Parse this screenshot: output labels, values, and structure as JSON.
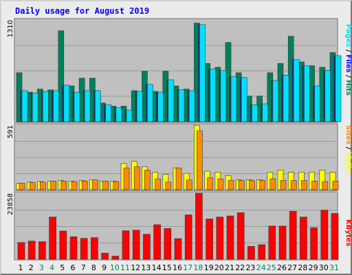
{
  "chart_data": {
    "type": "bar",
    "title": "Daily usage for August 2019",
    "days": [
      "1",
      "2",
      "3",
      "4",
      "5",
      "6",
      "7",
      "8",
      "9",
      "10",
      "11",
      "12",
      "13",
      "14",
      "15",
      "16",
      "17",
      "18",
      "19",
      "20",
      "21",
      "22",
      "23",
      "24",
      "25",
      "26",
      "27",
      "28",
      "29",
      "30",
      "31"
    ],
    "weekend_days": [
      "3",
      "4",
      "10",
      "11",
      "17",
      "18",
      "24",
      "25",
      "31"
    ],
    "grid": true,
    "panels": [
      {
        "name": "hits_files_pages",
        "max_label": "1310",
        "ylim": [
          0,
          1310
        ],
        "series": [
          {
            "name": "Hits",
            "color": "#00805c",
            "values": [
              630,
              380,
              420,
              410,
              1170,
              460,
              560,
              560,
              240,
              200,
              200,
              400,
              650,
              390,
              650,
              460,
              420,
              1270,
              750,
              700,
              1020,
              630,
              330,
              330,
              630,
              750,
              1100,
              770,
              720,
              700,
              890
            ]
          },
          {
            "name": "Files",
            "color": "#0000ff",
            "values": [
              400,
              370,
              390,
              400,
              470,
              380,
              400,
              400,
              220,
              180,
              150,
              390,
              480,
              380,
              540,
              410,
              400,
              1250,
              680,
              660,
              580,
              570,
              220,
              230,
              530,
              600,
              800,
              720,
              460,
              660,
              850
            ]
          },
          {
            "name": "Pages",
            "color": "#00e0ff",
            "values": [
              400,
              370,
              390,
              400,
              470,
              380,
              400,
              400,
              220,
              180,
              150,
              390,
              480,
              380,
              540,
              410,
              400,
              1250,
              680,
              660,
              580,
              570,
              220,
              230,
              530,
              600,
              800,
              720,
              460,
              660,
              850
            ]
          }
        ]
      },
      {
        "name": "visits_sites",
        "max_label": "591",
        "ylim": [
          0,
          591
        ],
        "series": [
          {
            "name": "Visits",
            "color": "#ffff00",
            "values": [
              60,
              70,
              75,
              80,
              85,
              80,
              85,
              90,
              80,
              80,
              240,
              260,
              210,
              160,
              140,
              200,
              150,
              590,
              170,
              160,
              130,
              90,
              90,
              90,
              160,
              180,
              160,
              160,
              160,
              180,
              160
            ]
          },
          {
            "name": "Sites",
            "color": "#ff8c00",
            "values": [
              60,
              65,
              70,
              80,
              80,
              75,
              80,
              90,
              80,
              75,
              200,
              210,
              180,
              100,
              70,
              200,
              90,
              540,
              110,
              100,
              85,
              85,
              85,
              85,
              100,
              85,
              85,
              85,
              80,
              75,
              80
            ]
          }
        ]
      },
      {
        "name": "kbytes",
        "max_label": "23858",
        "ylim": [
          0,
          23858
        ],
        "series": [
          {
            "name": "KBytes",
            "color": "#ff0000",
            "values": [
              6100,
              6600,
              6400,
              15400,
              10300,
              8200,
              7600,
              7900,
              2200,
              1100,
              10400,
              10600,
              9100,
              12600,
              11200,
              7500,
              16200,
              24100,
              14700,
              15400,
              15800,
              17000,
              4700,
              5300,
              12100,
              12100,
              17500,
              15400,
              11500,
              17900,
              16700
            ]
          }
        ]
      }
    ]
  }
}
